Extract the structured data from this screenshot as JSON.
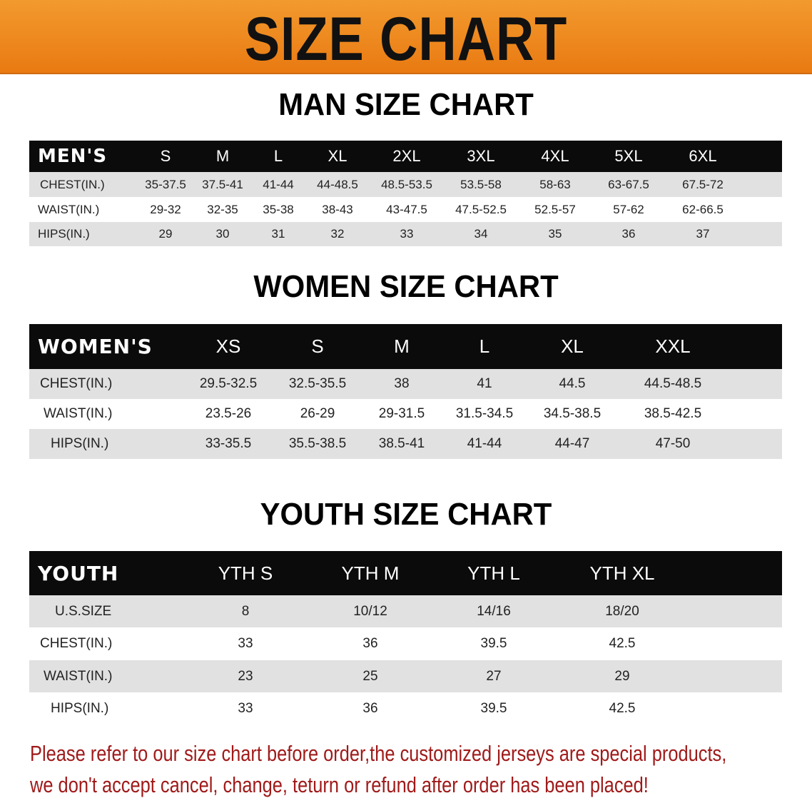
{
  "banner": {
    "title": "SIZE CHART",
    "color": "#ee8418"
  },
  "chart_data": [
    {
      "type": "table",
      "title": "MAN SIZE CHART",
      "header_label": "MEN'S",
      "columns": [
        "S",
        "M",
        "L",
        "XL",
        "2XL",
        "3XL",
        "4XL",
        "5XL",
        "6XL"
      ],
      "rows": [
        {
          "label": "CHEST(IN.)",
          "values": [
            "35-37.5",
            "37.5-41",
            "41-44",
            "44-48.5",
            "48.5-53.5",
            "53.5-58",
            "58-63",
            "63-67.5",
            "67.5-72"
          ]
        },
        {
          "label": "WAIST(IN.)",
          "values": [
            "29-32",
            "32-35",
            "35-38",
            "38-43",
            "43-47.5",
            "47.5-52.5",
            "52.5-57",
            "57-62",
            "62-66.5"
          ]
        },
        {
          "label": "HIPS(IN.)",
          "values": [
            "29",
            "30",
            "31",
            "32",
            "33",
            "34",
            "35",
            "36",
            "37"
          ]
        }
      ]
    },
    {
      "type": "table",
      "title": "WOMEN SIZE CHART",
      "header_label": "WOMEN'S",
      "columns": [
        "XS",
        "S",
        "M",
        "L",
        "XL",
        "XXL"
      ],
      "rows": [
        {
          "label": "CHEST(IN.)",
          "values": [
            "29.5-32.5",
            "32.5-35.5",
            "38",
            "41",
            "44.5",
            "44.5-48.5"
          ]
        },
        {
          "label": "WAIST(IN.)",
          "values": [
            "23.5-26",
            "26-29",
            "29-31.5",
            "31.5-34.5",
            "34.5-38.5",
            "38.5-42.5"
          ]
        },
        {
          "label": "HIPS(IN.)",
          "values": [
            "33-35.5",
            "35.5-38.5",
            "38.5-41",
            "41-44",
            "44-47",
            "47-50"
          ]
        }
      ]
    },
    {
      "type": "table",
      "title": "YOUTH SIZE CHART",
      "header_label": "YOUTH",
      "columns": [
        "YTH S",
        "YTH M",
        "YTH L",
        "YTH XL"
      ],
      "rows": [
        {
          "label": "U.S.SIZE",
          "values": [
            "8",
            "10/12",
            "14/16",
            "18/20"
          ]
        },
        {
          "label": "CHEST(IN.)",
          "values": [
            "33",
            "36",
            "39.5",
            "42.5"
          ]
        },
        {
          "label": "WAIST(IN.)",
          "values": [
            "23",
            "25",
            "27",
            "29"
          ]
        },
        {
          "label": "HIPS(IN.)",
          "values": [
            "33",
            "36",
            "39.5",
            "42.5"
          ]
        }
      ]
    }
  ],
  "notice": {
    "line1": "Please refer to our size chart before order,the customized jerseys are special products,",
    "line2": "we don't accept cancel, change, teturn or refund after order has been placed!",
    "color": "#a01a1a"
  }
}
